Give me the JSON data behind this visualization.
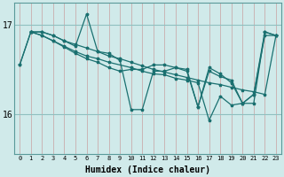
{
  "xlabel": "Humidex (Indice chaleur)",
  "bg_color": "#d0eaea",
  "plot_bg_color": "#d0eaea",
  "line_color": "#1a7070",
  "grid_color_v": "#c8a0a0",
  "grid_color_h": "#90c0c0",
  "yticks": [
    16,
    17
  ],
  "ylim": [
    15.55,
    17.25
  ],
  "xlim": [
    -0.5,
    23.5
  ],
  "xticks": [
    0,
    1,
    2,
    3,
    4,
    5,
    6,
    7,
    8,
    9,
    10,
    11,
    12,
    13,
    14,
    15,
    16,
    17,
    18,
    19,
    20,
    21,
    22,
    23
  ],
  "series": [
    {
      "x": [
        0,
        1,
        2,
        3,
        4,
        5,
        6,
        7,
        8,
        9,
        10,
        11,
        12,
        13,
        14,
        15,
        16,
        17,
        18,
        19,
        20,
        21,
        22,
        23
      ],
      "y": [
        16.55,
        16.92,
        16.92,
        16.88,
        16.82,
        16.78,
        16.74,
        16.7,
        16.65,
        16.62,
        16.58,
        16.54,
        16.5,
        16.47,
        16.44,
        16.41,
        16.38,
        16.35,
        16.33,
        16.3,
        16.27,
        16.25,
        16.22,
        16.88
      ]
    },
    {
      "x": [
        1,
        2,
        3,
        4,
        5,
        6,
        7,
        8,
        9,
        10,
        11,
        12,
        13,
        14,
        15,
        16,
        17,
        18,
        19,
        20,
        21,
        22,
        23
      ],
      "y": [
        16.92,
        16.92,
        16.88,
        16.82,
        16.76,
        17.12,
        16.7,
        16.68,
        16.6,
        16.05,
        16.05,
        16.48,
        16.48,
        16.52,
        16.48,
        16.08,
        16.52,
        16.45,
        16.35,
        16.12,
        16.12,
        16.92,
        16.88
      ]
    },
    {
      "x": [
        1,
        2,
        3,
        4,
        5,
        6,
        7,
        8,
        10,
        11,
        12,
        13,
        14,
        15,
        16,
        17,
        18,
        19,
        20,
        21,
        22,
        23
      ],
      "y": [
        16.92,
        16.88,
        16.82,
        16.76,
        16.7,
        16.65,
        16.62,
        16.58,
        16.52,
        16.48,
        16.45,
        16.44,
        16.4,
        16.38,
        16.35,
        15.93,
        16.2,
        16.1,
        16.12,
        16.22,
        16.88,
        16.88
      ]
    },
    {
      "x": [
        0,
        1,
        2,
        3,
        4,
        5,
        6,
        7,
        8,
        9,
        10,
        11,
        12,
        13,
        14,
        15,
        16,
        17,
        18,
        19,
        20,
        21,
        22,
        23
      ],
      "y": [
        16.55,
        16.92,
        16.88,
        16.82,
        16.75,
        16.68,
        16.62,
        16.58,
        16.52,
        16.48,
        16.5,
        16.5,
        16.55,
        16.55,
        16.52,
        16.5,
        16.08,
        16.48,
        16.42,
        16.38,
        16.12,
        16.22,
        16.92,
        16.88
      ]
    }
  ]
}
